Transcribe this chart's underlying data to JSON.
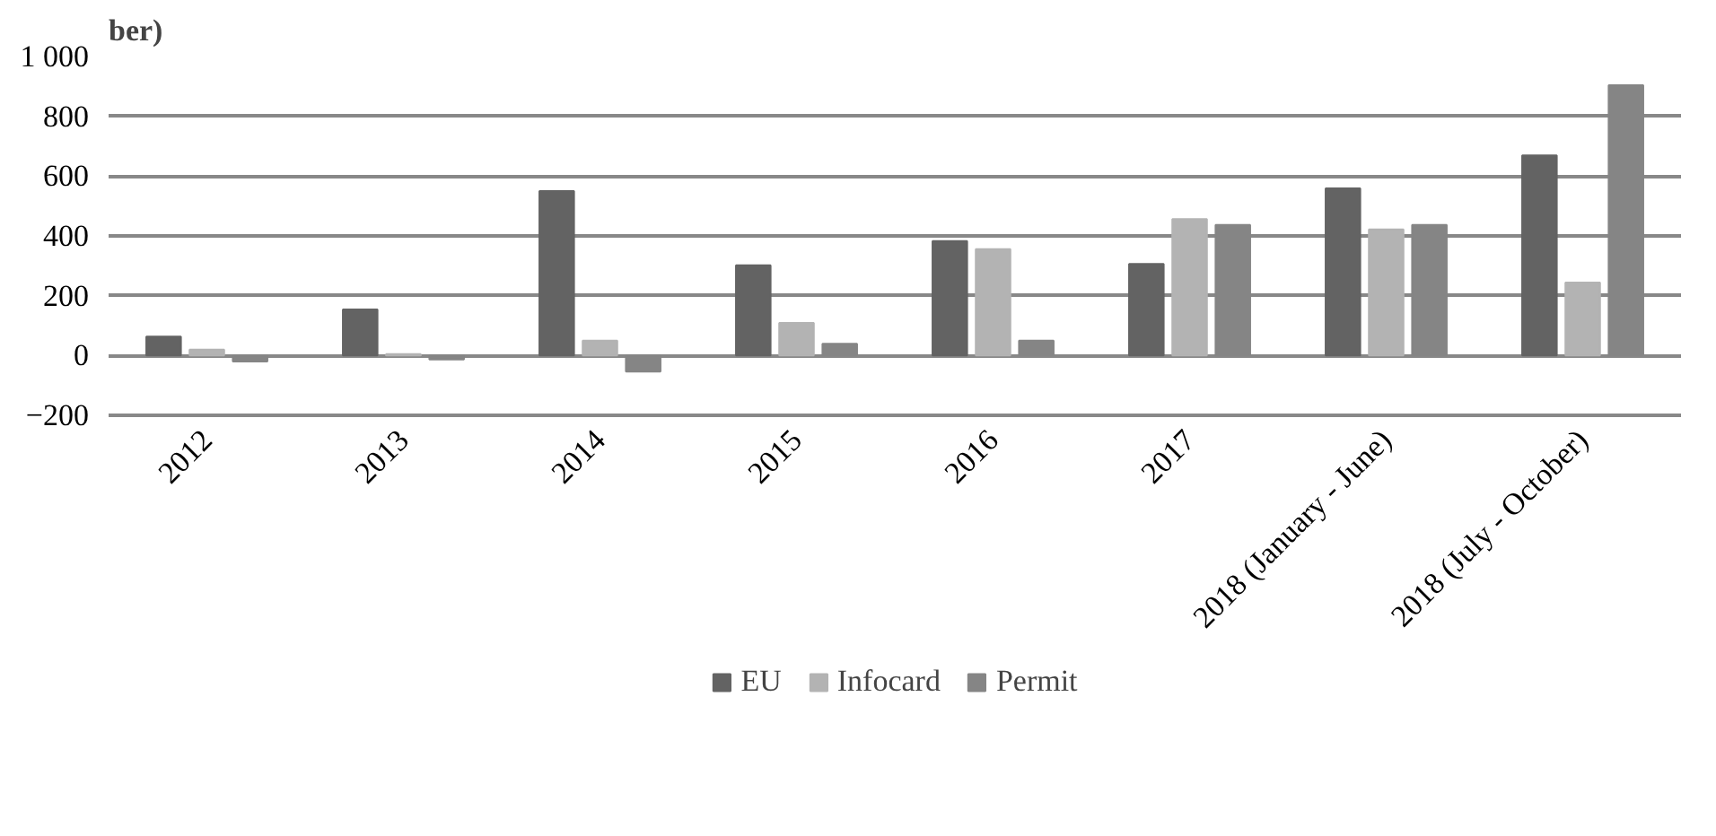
{
  "chart_data": {
    "type": "bar",
    "title": "ber)",
    "categories": [
      "2012",
      "2013",
      "2014",
      "2015",
      "2016",
      "2017",
      "2018 (January - June)",
      "2018 (July - October)"
    ],
    "series": [
      {
        "name": "EU",
        "color": "#636363",
        "values": [
          63,
          154,
          550,
          302,
          383,
          306,
          559,
          669
        ]
      },
      {
        "name": "Infocard",
        "color": "#b3b3b3",
        "values": [
          20,
          5,
          50,
          109,
          356,
          456,
          422,
          244
        ]
      },
      {
        "name": "Permit",
        "color": "#858585",
        "values": [
          -20,
          -13,
          -54,
          39,
          50,
          437,
          437,
          904
        ]
      }
    ],
    "ylim": [
      -200,
      1000
    ],
    "yticks": [
      -200,
      0,
      200,
      400,
      600,
      800,
      {
        "value": 1000,
        "label": "1 000"
      }
    ],
    "grid": "y",
    "legend": "bottom"
  }
}
